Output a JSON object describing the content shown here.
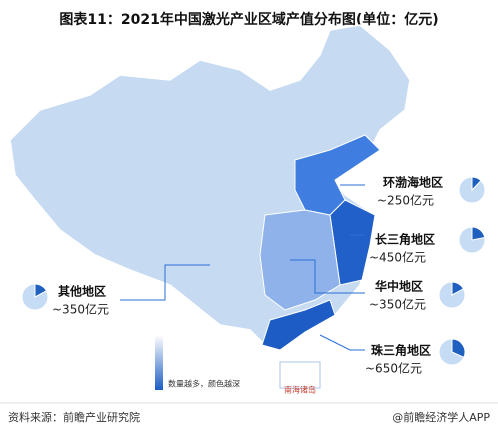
{
  "title": "图表11：2021年中国激光产业区域产值分布图(单位：亿元)",
  "regions": [
    {
      "name": "环渤海地区",
      "value": 250,
      "value_label": "~250亿元",
      "color": "#3f7ee0"
    },
    {
      "name": "长三角地区",
      "value": 450,
      "value_label": "~450亿元",
      "color": "#2060c8"
    },
    {
      "name": "华中地区",
      "value": 350,
      "value_label": "~350亿元",
      "color": "#8fb2ea"
    },
    {
      "name": "珠三角地区",
      "value": 650,
      "value_label": "~650亿元",
      "color": "#1c5cc4"
    },
    {
      "name": "其他地区",
      "value": 350,
      "value_label": "~350亿元",
      "color": "#c6daf2"
    }
  ],
  "legend_label": "数量越多，颜色越深",
  "inset_label": "南海诸岛",
  "source": "资料来源：前瞻产业研究院",
  "credit": "@前瞻经济学人APP"
}
